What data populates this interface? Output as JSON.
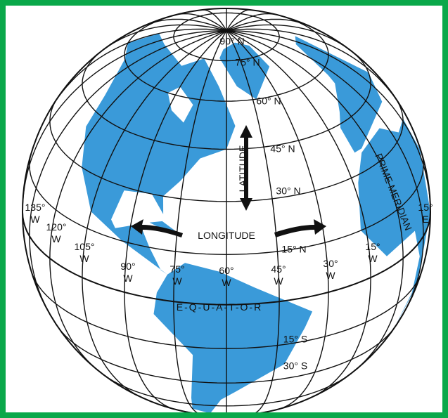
{
  "parallels": [
    "90° N",
    "75° N",
    "60° N",
    "45° N",
    "30° N",
    "15° N",
    "15° S",
    "30° S"
  ],
  "meridians": [
    "135° W",
    "120° W",
    "105° W",
    "90° W",
    "75° W",
    "60° W",
    "45° W",
    "30° W",
    "15° W",
    "15° E"
  ],
  "labels": {
    "latitude": "LATITUDE",
    "longitude": "LONGITUDE",
    "prime_meridian": "PRIME MERIDIAN",
    "equator": "E-Q-U-A-T-O-R"
  }
}
